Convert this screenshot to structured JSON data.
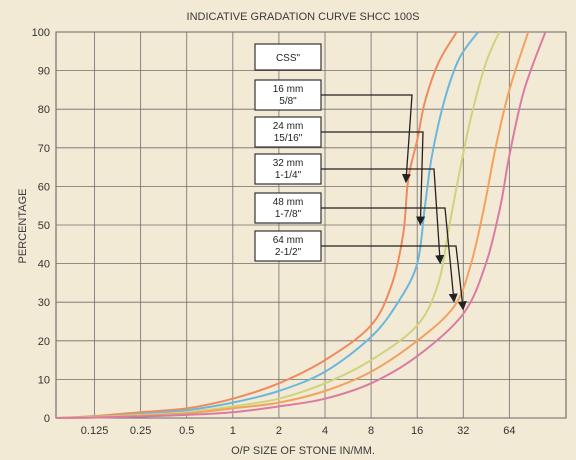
{
  "chart_data": {
    "type": "line",
    "title": "INDICATIVE GRADATION CURVE SHCC 100S",
    "xlabel": "O/P SIZE OF STONE IN/MM.",
    "ylabel": "PERCENTAGE",
    "x_scale": "log2",
    "x_ticks": [
      0.125,
      0.25,
      0.5,
      1,
      2,
      4,
      8,
      16,
      32,
      64
    ],
    "x_tick_labels": [
      "0.125",
      "0.25",
      "0.5",
      "1",
      "2",
      "4",
      "8",
      "16",
      "32",
      "64"
    ],
    "xlim": [
      0.07,
      150
    ],
    "ylim": [
      0,
      100
    ],
    "y_ticks": [
      0,
      10,
      20,
      30,
      40,
      50,
      60,
      70,
      80,
      90,
      100
    ],
    "y_tick_labels": [
      "0",
      "10",
      "20",
      "30",
      "40",
      "50",
      "60",
      "70",
      "80",
      "90",
      "100"
    ],
    "grid": true,
    "legend_header": "CSS\"",
    "series": [
      {
        "name": "16 mm 5/8\"",
        "label_lines": [
          "16 mm",
          "5/8\""
        ],
        "color": "#ef8a5f",
        "x": [
          0.07,
          0.125,
          0.25,
          0.5,
          1,
          2,
          4,
          8,
          11,
          13,
          14,
          16,
          18,
          22,
          29
        ],
        "y": [
          0,
          0.5,
          1.5,
          2.5,
          5,
          9,
          15,
          24,
          35,
          48,
          62,
          72,
          82,
          92,
          100
        ]
      },
      {
        "name": "24 mm 15/16\"",
        "label_lines": [
          "24 mm",
          "15/16\""
        ],
        "color": "#6cb7dc",
        "x": [
          0.07,
          0.125,
          0.25,
          0.5,
          1,
          2,
          4,
          8,
          12,
          16,
          18,
          20,
          24,
          30,
          40
        ],
        "y": [
          0,
          0.3,
          1,
          2,
          4,
          7,
          12,
          21,
          30,
          40,
          55,
          68,
          82,
          93,
          100
        ]
      },
      {
        "name": "32 mm 1-1/4\"",
        "label_lines": [
          "32 mm",
          "1-1/4\""
        ],
        "color": "#cfd37d",
        "x": [
          0.07,
          0.125,
          0.25,
          0.5,
          1,
          2,
          4,
          8,
          16,
          22,
          26,
          30,
          36,
          45,
          55
        ],
        "y": [
          0,
          0.3,
          0.8,
          1.5,
          3,
          5,
          9,
          15,
          24,
          35,
          50,
          63,
          78,
          92,
          100
        ]
      },
      {
        "name": "48 mm 1-7/8\"",
        "label_lines": [
          "48 mm",
          "1-7/8\""
        ],
        "color": "#f2a25f",
        "x": [
          0.07,
          0.125,
          0.25,
          0.5,
          1,
          2,
          4,
          8,
          16,
          28,
          36,
          44,
          52,
          64,
          85
        ],
        "y": [
          0,
          0.2,
          0.6,
          1.2,
          2.5,
          4,
          7,
          12,
          20,
          29,
          40,
          55,
          70,
          85,
          100
        ]
      },
      {
        "name": "64 mm 2-1/2\"",
        "label_lines": [
          "64 mm",
          "2-1/2\""
        ],
        "color": "#d97ca3",
        "x": [
          0.07,
          0.125,
          0.25,
          0.5,
          1,
          2,
          4,
          8,
          16,
          32,
          45,
          56,
          64,
          80,
          110
        ],
        "y": [
          0,
          0.1,
          0.4,
          0.8,
          1.5,
          3,
          5,
          9,
          16,
          27,
          40,
          55,
          68,
          85,
          100
        ]
      }
    ]
  }
}
